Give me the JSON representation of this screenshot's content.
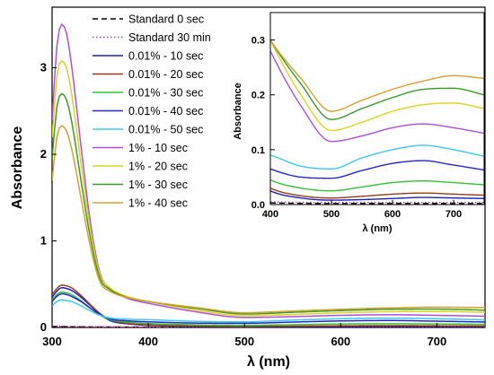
{
  "chart_data": [
    {
      "type": "line",
      "title": "",
      "xlabel": "λ (nm)",
      "ylabel": "Absorbance",
      "xlim": [
        300,
        750
      ],
      "ylim": [
        0,
        3.7
      ],
      "x_ticks": [
        300,
        400,
        500,
        600,
        700
      ],
      "y_ticks": [
        0,
        1,
        2,
        3
      ],
      "legend_position": "top-left",
      "series": [
        {
          "name": "Standard 0 sec",
          "color": "#000000",
          "dash": "6,4",
          "x": [
            300,
            350,
            400,
            500,
            600,
            700,
            750
          ],
          "y": [
            0.01,
            0.005,
            0.003,
            0.002,
            0.002,
            0.002,
            0.002
          ]
        },
        {
          "name": "Standard 30 min",
          "color": "#cc2db0",
          "dash": "1.5,2.5",
          "x": [
            300,
            350,
            400,
            500,
            600,
            700,
            750
          ],
          "y": [
            0.015,
            0.008,
            0.005,
            0.004,
            0.004,
            0.004,
            0.004
          ]
        },
        {
          "name": "0.01% - 10 sec",
          "color": "#1d1fb8",
          "dash": "",
          "x": [
            300,
            305,
            310,
            315,
            320,
            330,
            340,
            350,
            360,
            380,
            400,
            450,
            500,
            550,
            600,
            650,
            700,
            750
          ],
          "y": [
            0.35,
            0.42,
            0.46,
            0.45,
            0.43,
            0.35,
            0.25,
            0.15,
            0.08,
            0.04,
            0.025,
            0.012,
            0.008,
            0.009,
            0.011,
            0.013,
            0.012,
            0.011
          ]
        },
        {
          "name": "0.01% - 20 sec",
          "color": "#9b3a1a",
          "dash": "",
          "x": [
            300,
            305,
            310,
            315,
            320,
            330,
            340,
            350,
            360,
            380,
            400,
            450,
            500,
            550,
            600,
            650,
            700,
            750
          ],
          "y": [
            0.38,
            0.45,
            0.49,
            0.48,
            0.46,
            0.37,
            0.26,
            0.16,
            0.09,
            0.045,
            0.03,
            0.016,
            0.012,
            0.015,
            0.019,
            0.021,
            0.019,
            0.017
          ]
        },
        {
          "name": "0.01% - 30 sec",
          "color": "#33c233",
          "dash": "",
          "x": [
            300,
            305,
            310,
            315,
            320,
            330,
            340,
            350,
            360,
            380,
            400,
            450,
            500,
            550,
            600,
            650,
            700,
            750
          ],
          "y": [
            0.32,
            0.38,
            0.41,
            0.4,
            0.38,
            0.31,
            0.22,
            0.14,
            0.09,
            0.06,
            0.045,
            0.03,
            0.025,
            0.032,
            0.04,
            0.043,
            0.04,
            0.036
          ]
        },
        {
          "name": "0.01% - 40 sec",
          "color": "#2525cc",
          "dash": "",
          "x": [
            300,
            305,
            310,
            315,
            320,
            330,
            340,
            350,
            360,
            380,
            400,
            450,
            500,
            550,
            600,
            650,
            700,
            750
          ],
          "y": [
            0.3,
            0.36,
            0.39,
            0.38,
            0.36,
            0.3,
            0.22,
            0.15,
            0.1,
            0.075,
            0.065,
            0.05,
            0.048,
            0.062,
            0.075,
            0.08,
            0.072,
            0.063
          ]
        },
        {
          "name": "0.01% - 50 sec",
          "color": "#3ac8ee",
          "dash": "",
          "x": [
            300,
            305,
            310,
            315,
            320,
            330,
            340,
            350,
            360,
            380,
            400,
            450,
            500,
            550,
            600,
            650,
            700,
            750
          ],
          "y": [
            0.25,
            0.3,
            0.32,
            0.31,
            0.3,
            0.25,
            0.19,
            0.14,
            0.11,
            0.095,
            0.09,
            0.07,
            0.065,
            0.085,
            0.1,
            0.108,
            0.1,
            0.088
          ]
        },
        {
          "name": "1% - 10 sec",
          "color": "#b04fdc",
          "dash": "",
          "x": [
            300,
            305,
            310,
            315,
            320,
            330,
            340,
            350,
            360,
            370,
            380,
            400,
            450,
            500,
            550,
            600,
            650,
            700,
            750
          ],
          "y": [
            2.4,
            3.25,
            3.5,
            3.4,
            3.05,
            2.1,
            1.2,
            0.62,
            0.45,
            0.38,
            0.33,
            0.28,
            0.18,
            0.115,
            0.125,
            0.14,
            0.147,
            0.14,
            0.13
          ]
        },
        {
          "name": "1% - 20 sec",
          "color": "#ddd21c",
          "dash": "",
          "x": [
            300,
            305,
            310,
            315,
            320,
            330,
            340,
            350,
            360,
            370,
            380,
            400,
            450,
            500,
            550,
            600,
            650,
            700,
            750
          ],
          "y": [
            2.2,
            2.9,
            3.08,
            3.0,
            2.72,
            1.9,
            1.12,
            0.6,
            0.46,
            0.39,
            0.35,
            0.3,
            0.2,
            0.135,
            0.15,
            0.17,
            0.182,
            0.185,
            0.175
          ]
        },
        {
          "name": "1% - 30 sec",
          "color": "#3a9a2a",
          "dash": "",
          "x": [
            300,
            305,
            310,
            315,
            320,
            330,
            340,
            350,
            360,
            370,
            380,
            400,
            450,
            500,
            550,
            600,
            650,
            700,
            750
          ],
          "y": [
            1.95,
            2.55,
            2.7,
            2.63,
            2.4,
            1.7,
            1.02,
            0.56,
            0.44,
            0.38,
            0.34,
            0.3,
            0.22,
            0.155,
            0.175,
            0.195,
            0.21,
            0.212,
            0.2
          ]
        },
        {
          "name": "1% - 40 sec",
          "color": "#d8a02c",
          "dash": "",
          "x": [
            300,
            305,
            310,
            315,
            320,
            330,
            340,
            350,
            360,
            370,
            380,
            400,
            450,
            500,
            550,
            600,
            650,
            700,
            750
          ],
          "y": [
            1.7,
            2.2,
            2.33,
            2.27,
            2.08,
            1.5,
            0.92,
            0.52,
            0.42,
            0.37,
            0.34,
            0.3,
            0.23,
            0.17,
            0.19,
            0.21,
            0.225,
            0.235,
            0.23
          ]
        }
      ]
    },
    {
      "type": "line",
      "title": "",
      "xlabel": "λ (nm)",
      "ylabel": "Absorbance",
      "xlim": [
        400,
        750
      ],
      "ylim": [
        0,
        0.35
      ],
      "x_ticks": [
        400,
        500,
        600,
        700
      ],
      "y_ticks": [
        0.0,
        0.1,
        0.2,
        0.3
      ],
      "legend_position": "none",
      "series_ref": "same series as main plot, zoomed 400-750 nm"
    }
  ]
}
